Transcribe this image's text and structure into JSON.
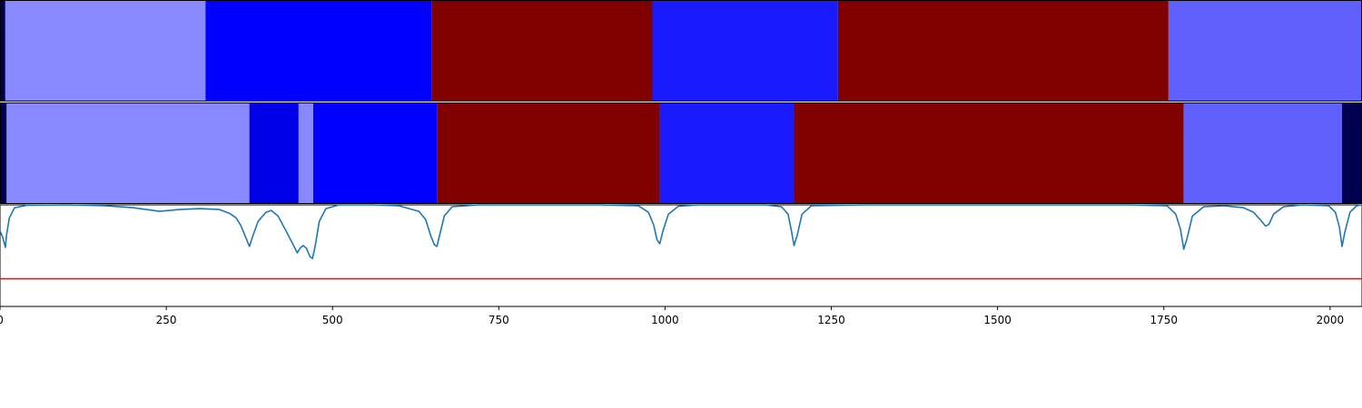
{
  "chart_data": [
    {
      "type": "heatmap",
      "title": "",
      "xlim": [
        0,
        2048
      ],
      "segments": [
        {
          "start": 0,
          "end": 8,
          "color": "#000050"
        },
        {
          "start": 8,
          "end": 309,
          "color": "#8888ff"
        },
        {
          "start": 309,
          "end": 649,
          "color": "#0000ff"
        },
        {
          "start": 649,
          "end": 981,
          "color": "#800000"
        },
        {
          "start": 981,
          "end": 1260,
          "color": "#1a1aff"
        },
        {
          "start": 1260,
          "end": 1757,
          "color": "#800000"
        },
        {
          "start": 1757,
          "end": 2048,
          "color": "#6060ff"
        }
      ]
    },
    {
      "type": "heatmap",
      "title": "",
      "xlim": [
        0,
        2048
      ],
      "segments": [
        {
          "start": 0,
          "end": 10,
          "color": "#000050"
        },
        {
          "start": 10,
          "end": 375,
          "color": "#8888ff"
        },
        {
          "start": 375,
          "end": 449,
          "color": "#0000e8"
        },
        {
          "start": 449,
          "end": 471,
          "color": "#8888ff"
        },
        {
          "start": 471,
          "end": 657,
          "color": "#0000ff"
        },
        {
          "start": 657,
          "end": 992,
          "color": "#800000"
        },
        {
          "start": 992,
          "end": 1194,
          "color": "#1a1aff"
        },
        {
          "start": 1194,
          "end": 1780,
          "color": "#800000"
        },
        {
          "start": 1780,
          "end": 2018,
          "color": "#6060ff"
        },
        {
          "start": 2018,
          "end": 2048,
          "color": "#000050"
        }
      ]
    },
    {
      "type": "line",
      "title": "",
      "xlabel": "",
      "ylabel": "",
      "xlim": [
        0,
        2048
      ],
      "ylim": [
        -0.1,
        1.0
      ],
      "xticks": [
        0,
        250,
        500,
        750,
        1000,
        1250,
        1500,
        1750,
        2000
      ],
      "line_color": "#1f77b4",
      "threshold": {
        "y": 0.2,
        "color": "#ff0000"
      },
      "series": [
        {
          "color": "#1f77b4",
          "x": [
            0,
            4,
            8,
            10,
            14,
            22,
            40,
            100,
            160,
            200,
            240,
            270,
            300,
            330,
            345,
            355,
            362,
            370,
            375,
            380,
            388,
            395,
            400,
            408,
            418,
            430,
            440,
            447,
            451,
            456,
            461,
            466,
            470,
            474,
            480,
            490,
            510,
            560,
            600,
            630,
            640,
            648,
            653,
            657,
            662,
            668,
            680,
            720,
            900,
            960,
            975,
            983,
            988,
            992,
            997,
            1005,
            1020,
            1050,
            1150,
            1175,
            1185,
            1190,
            1194,
            1199,
            1206,
            1220,
            1300,
            1700,
            1755,
            1768,
            1775,
            1780,
            1785,
            1793,
            1810,
            1840,
            1870,
            1885,
            1895,
            1903,
            1908,
            1915,
            1930,
            1960,
            1998,
            2008,
            2014,
            2018,
            2022,
            2030,
            2040,
            2048
          ],
          "y": [
            0.72,
            0.65,
            0.54,
            0.68,
            0.86,
            0.97,
            0.995,
            1.0,
            0.99,
            0.97,
            0.93,
            0.95,
            0.96,
            0.95,
            0.91,
            0.86,
            0.78,
            0.64,
            0.55,
            0.66,
            0.82,
            0.88,
            0.92,
            0.94,
            0.88,
            0.72,
            0.58,
            0.48,
            0.53,
            0.56,
            0.53,
            0.44,
            0.42,
            0.56,
            0.82,
            0.96,
            1.0,
            1.0,
            0.99,
            0.93,
            0.84,
            0.66,
            0.57,
            0.55,
            0.7,
            0.88,
            0.98,
            1.0,
            1.0,
            0.99,
            0.92,
            0.78,
            0.62,
            0.58,
            0.72,
            0.9,
            0.985,
            1.0,
            1.0,
            0.98,
            0.9,
            0.72,
            0.56,
            0.68,
            0.9,
            0.99,
            1.0,
            1.0,
            0.99,
            0.9,
            0.74,
            0.52,
            0.64,
            0.88,
            0.98,
            0.99,
            0.97,
            0.92,
            0.84,
            0.77,
            0.79,
            0.9,
            0.98,
            1.0,
            0.99,
            0.92,
            0.76,
            0.55,
            0.7,
            0.92,
            0.99,
            1.0
          ]
        }
      ]
    }
  ]
}
